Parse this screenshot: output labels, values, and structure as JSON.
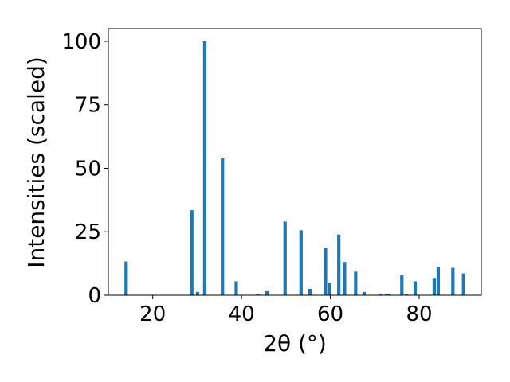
{
  "chart_data": {
    "type": "bar",
    "xlabel": "2θ (°)",
    "ylabel": "Intensities (scaled)",
    "xlim": [
      10,
      94
    ],
    "ylim": [
      0,
      105
    ],
    "x_ticks": [
      20,
      40,
      60,
      80
    ],
    "y_ticks": [
      0,
      25,
      50,
      75,
      100
    ],
    "grid": false,
    "bar_color": "#1f77b4",
    "series": [
      {
        "x": [
          14.0,
          28.8,
          30.1,
          31.7,
          35.7,
          38.8,
          43.7,
          45.7,
          49.8,
          53.4,
          55.4,
          58.9,
          59.8,
          61.9,
          63.2,
          65.7,
          67.6,
          71.4,
          72.6,
          73.2,
          76.1,
          77.2,
          79.1,
          83.4,
          84.3,
          87.6,
          90.0
        ],
        "values": [
          13.3,
          33.5,
          1.3,
          100.0,
          53.9,
          5.5,
          0.3,
          1.6,
          29.0,
          25.6,
          2.5,
          18.8,
          4.9,
          23.9,
          13.1,
          9.3,
          1.3,
          0.5,
          0.5,
          0.5,
          7.9,
          0.3,
          5.5,
          6.8,
          11.2,
          10.8,
          8.6
        ]
      }
    ]
  }
}
